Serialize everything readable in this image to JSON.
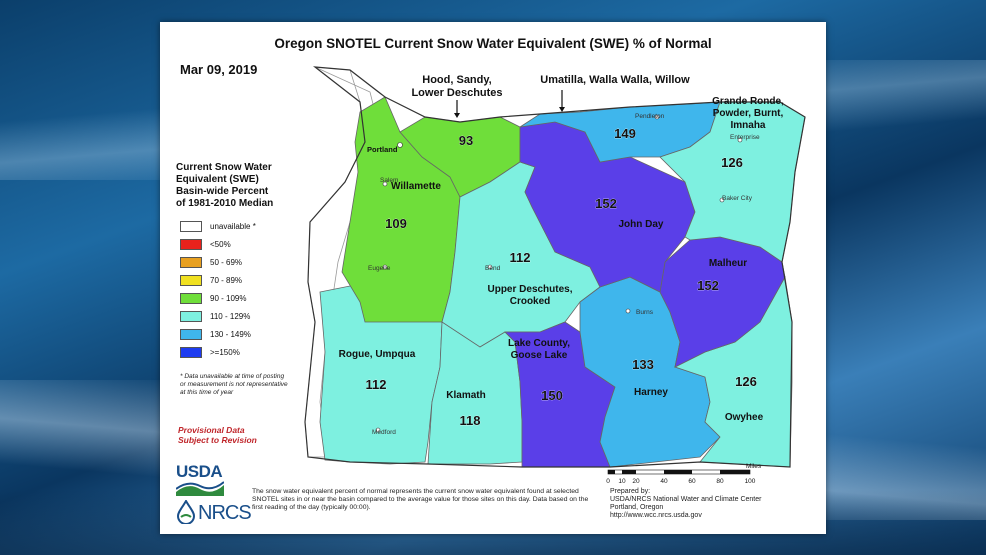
{
  "title": "Oregon SNOTEL Current Snow Water Equivalent (SWE) % of Normal",
  "date": "Mar 09, 2019",
  "annotations": {
    "hood": [
      "Hood, Sandy,",
      "Lower Deschutes"
    ],
    "umatilla": "Umatilla, Walla Walla, Willow"
  },
  "legend": {
    "title": [
      "Current Snow Water",
      "Equivalent (SWE)",
      "Basin-wide Percent",
      "of 1981-2010 Median"
    ],
    "items": [
      {
        "label": "unavailable *",
        "color": "#ffffff"
      },
      {
        "label": "<50%",
        "color": "#e8221c"
      },
      {
        "label": "50 - 69%",
        "color": "#e8a020"
      },
      {
        "label": "70 - 89%",
        "color": "#f0e020"
      },
      {
        "label": "90 - 109%",
        "color": "#6fde3a"
      },
      {
        "label": "110 - 129%",
        "color": "#7ef0e0"
      },
      {
        "label": "130 - 149%",
        "color": "#3fb6ec"
      },
      {
        "label": ">=150%",
        "color": "#1e3cf0"
      }
    ]
  },
  "note": "* Data unavailable at time of posting or measurement is not representative at this time of year",
  "provisional": [
    "Provisional Data",
    "Subject to Revision"
  ],
  "footnote": "The snow water equivalent percent of normal represents the current snow water equivalent found at selected SNOTEL sites in or near the basin compared to the average value for those sites on this day. Data based on the first reading of the day (typically 00:00).",
  "prepared": [
    "Prepared by:",
    "USDA/NRCS National Water and Climate Center",
    "Portland, Oregon",
    "http://www.wcc.nrcs.usda.gov"
  ],
  "logos": {
    "usda": "USDA",
    "nrcs": "NRCS"
  },
  "scale": {
    "unit": "Miles",
    "ticks": [
      "0",
      "10",
      "20",
      "40",
      "60",
      "80",
      "100"
    ]
  },
  "basins": [
    {
      "name": "Willamette",
      "value": "109",
      "color": "#6fde3a"
    },
    {
      "name": "Hood, Sandy, Lower Deschutes",
      "value": "93",
      "color": "#6fde3a"
    },
    {
      "name": "Umatilla, Walla Walla, Willow",
      "value": "149",
      "color": "#3fb6ec"
    },
    {
      "name": "Grande Ronde, Powder, Burnt, Imnaha",
      "value": "126",
      "color": "#7ef0e0"
    },
    {
      "name": "John Day",
      "value": "152",
      "color": "#5a3fe8"
    },
    {
      "name": "Upper Deschutes, Crooked",
      "value": "112",
      "color": "#7ef0e0"
    },
    {
      "name": "Malheur",
      "value": "152",
      "color": "#5a3fe8"
    },
    {
      "name": "Rogue, Umpqua",
      "value": "112",
      "color": "#7ef0e0"
    },
    {
      "name": "Klamath",
      "value": "118",
      "color": "#7ef0e0"
    },
    {
      "name": "Lake County, Goose Lake",
      "value": "150",
      "color": "#5a3fe8"
    },
    {
      "name": "Harney",
      "value": "133",
      "color": "#3fb6ec"
    },
    {
      "name": "Owyhee",
      "value": "126",
      "color": "#7ef0e0"
    }
  ],
  "basin_labels": {
    "willamette": "Willamette",
    "grande": [
      "Grande Ronde,",
      "Powder, Burnt,",
      "Imnaha"
    ],
    "johnday": "John Day",
    "upper": [
      "Upper Deschutes,",
      "Crooked"
    ],
    "malheur": "Malheur",
    "rogue": "Rogue, Umpqua",
    "klamath": "Klamath",
    "lake": [
      "Lake County,",
      "Goose Lake"
    ],
    "harney": "Harney",
    "owyhee": "Owyhee"
  },
  "cities": [
    "Portland",
    "Salem",
    "Eugene",
    "Bend",
    "Pendleton",
    "Enterprise",
    "Baker City",
    "Burns",
    "Medford"
  ]
}
